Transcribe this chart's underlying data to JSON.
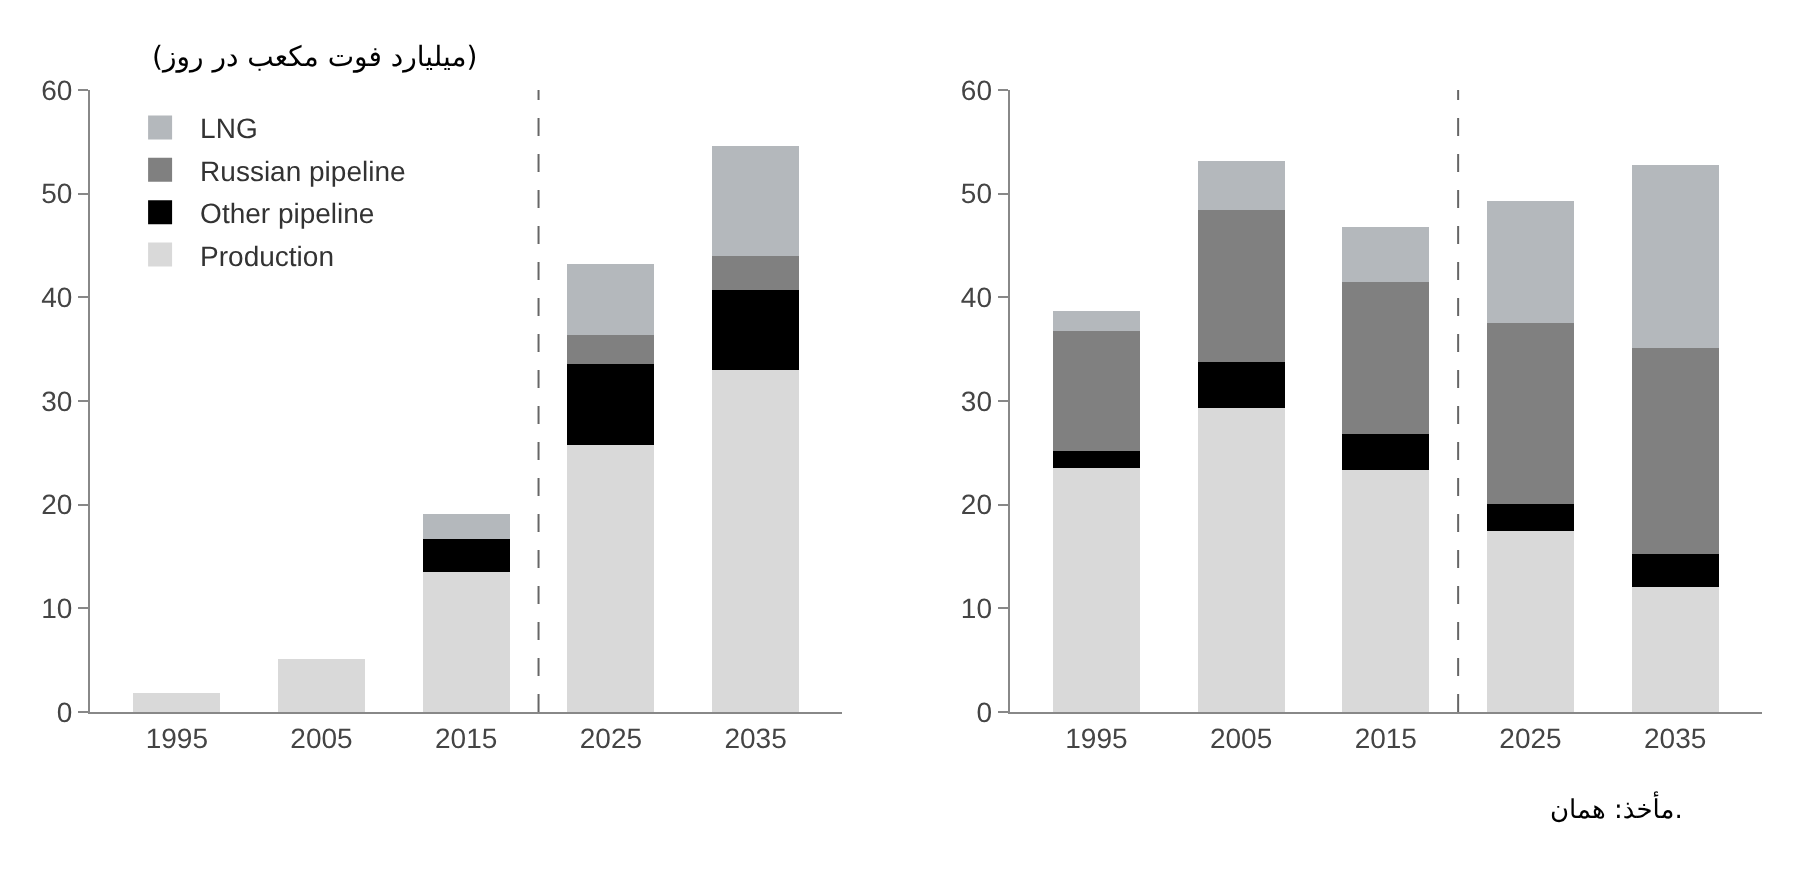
{
  "chart_data": [
    {
      "type": "bar",
      "stacked": true,
      "ylabel": "(میلیارد فوت مکعب در روز)",
      "categories": [
        "1995",
        "2005",
        "2015",
        "2025",
        "2035"
      ],
      "ylim": [
        0,
        60
      ],
      "yticks": [
        0,
        10,
        20,
        30,
        40,
        50,
        60
      ],
      "legend": "top left",
      "series": [
        {
          "name": "Production",
          "color": "#d9d9d9",
          "values": [
            1.8,
            5.1,
            13.5,
            25.8,
            33
          ]
        },
        {
          "name": "Other pipeline",
          "color": "#000000",
          "values": [
            0,
            0,
            3.2,
            7.8,
            7.7
          ]
        },
        {
          "name": "Russian pipeline",
          "color": "#808080",
          "values": [
            0,
            0,
            0,
            2.8,
            3.3
          ]
        },
        {
          "name": "LNG",
          "color": "#b4b8bc",
          "values": [
            0,
            0,
            2.4,
            6.8,
            10.6
          ]
        }
      ]
    },
    {
      "type": "bar",
      "stacked": true,
      "categories": [
        "1995",
        "2005",
        "2015",
        "2025",
        "2035"
      ],
      "ylim": [
        0,
        60
      ],
      "yticks": [
        0,
        10,
        20,
        30,
        40,
        50,
        60
      ],
      "series": [
        {
          "color": "#d9d9d9",
          "values": [
            23.5,
            29.3,
            23.3,
            17.5,
            12.1
          ]
        },
        {
          "color": "#000000",
          "values": [
            1.7,
            4.5,
            3.5,
            2.6,
            3.1
          ]
        },
        {
          "color": "#808080",
          "values": [
            11.6,
            14.6,
            14.7,
            17.4,
            19.9
          ]
        },
        {
          "color": "#b4b8bc",
          "values": [
            1.9,
            4.8,
            5.3,
            11.8,
            17.7
          ]
        }
      ],
      "annotations": [
        "مأخذ: همان."
      ]
    }
  ]
}
